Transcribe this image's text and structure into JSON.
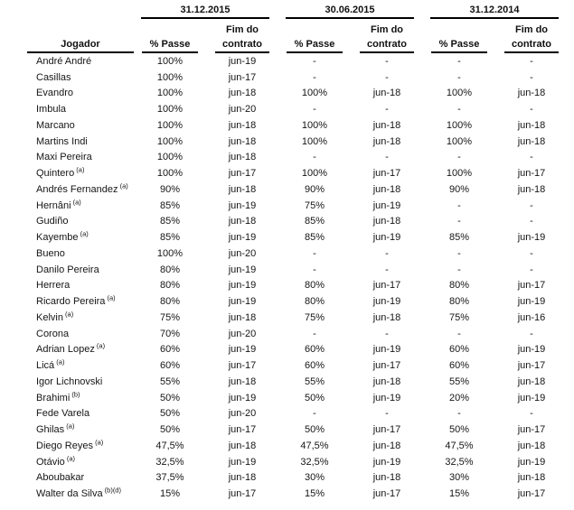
{
  "table": {
    "player_col_header": "Jogador",
    "groups": [
      {
        "date": "31.12.2015"
      },
      {
        "date": "30.06.2015"
      },
      {
        "date": "31.12.2014"
      }
    ],
    "sub_headers": {
      "passe": "% Passe",
      "fim_line1": "Fim do",
      "fim_line2": "contrato"
    },
    "rows": [
      {
        "player": "André André",
        "sup": "",
        "cells": [
          "100%",
          "jun-19",
          "-",
          "-",
          "-",
          "-"
        ]
      },
      {
        "player": "Casillas",
        "sup": "",
        "cells": [
          "100%",
          "jun-17",
          "-",
          "-",
          "-",
          "-"
        ]
      },
      {
        "player": "Evandro",
        "sup": "",
        "cells": [
          "100%",
          "jun-18",
          "100%",
          "jun-18",
          "100%",
          "jun-18"
        ]
      },
      {
        "player": "Imbula",
        "sup": "",
        "cells": [
          "100%",
          "jun-20",
          "-",
          "-",
          "-",
          "-"
        ]
      },
      {
        "player": "Marcano",
        "sup": "",
        "cells": [
          "100%",
          "jun-18",
          "100%",
          "jun-18",
          "100%",
          "jun-18"
        ]
      },
      {
        "player": "Martins Indi",
        "sup": "",
        "cells": [
          "100%",
          "jun-18",
          "100%",
          "jun-18",
          "100%",
          "jun-18"
        ]
      },
      {
        "player": "Maxi Pereira",
        "sup": "",
        "cells": [
          "100%",
          "jun-18",
          "-",
          "-",
          "-",
          "-"
        ]
      },
      {
        "player": "Quintero",
        "sup": "(a)",
        "cells": [
          "100%",
          "jun-17",
          "100%",
          "jun-17",
          "100%",
          "jun-17"
        ]
      },
      {
        "player": "Andrés Fernandez",
        "sup": "(a)",
        "cells": [
          "90%",
          "jun-18",
          "90%",
          "jun-18",
          "90%",
          "jun-18"
        ]
      },
      {
        "player": "Hernâni",
        "sup": "(a)",
        "cells": [
          "85%",
          "jun-19",
          "75%",
          "jun-19",
          "-",
          "-"
        ]
      },
      {
        "player": "Gudiño",
        "sup": "",
        "cells": [
          "85%",
          "jun-18",
          "85%",
          "jun-18",
          "-",
          "-"
        ]
      },
      {
        "player": "Kayembe",
        "sup": "(a)",
        "cells": [
          "85%",
          "jun-19",
          "85%",
          "jun-19",
          "85%",
          "jun-19"
        ]
      },
      {
        "player": "Bueno",
        "sup": "",
        "cells": [
          "100%",
          "jun-20",
          "-",
          "-",
          "-",
          "-"
        ]
      },
      {
        "player": "Danilo Pereira",
        "sup": "",
        "cells": [
          "80%",
          "jun-19",
          "-",
          "-",
          "-",
          "-"
        ]
      },
      {
        "player": "Herrera",
        "sup": "",
        "cells": [
          "80%",
          "jun-19",
          "80%",
          "jun-17",
          "80%",
          "jun-17"
        ]
      },
      {
        "player": "Ricardo Pereira",
        "sup": "(a)",
        "cells": [
          "80%",
          "jun-19",
          "80%",
          "jun-19",
          "80%",
          "jun-19"
        ]
      },
      {
        "player": "Kelvin",
        "sup": "(a)",
        "cells": [
          "75%",
          "jun-18",
          "75%",
          "jun-18",
          "75%",
          "jun-16"
        ]
      },
      {
        "player": "Corona",
        "sup": "",
        "cells": [
          "70%",
          "jun-20",
          "-",
          "-",
          "-",
          "-"
        ]
      },
      {
        "player": "Adrian Lopez",
        "sup": "(a)",
        "cells": [
          "60%",
          "jun-19",
          "60%",
          "jun-19",
          "60%",
          "jun-19"
        ]
      },
      {
        "player": "Licá",
        "sup": "(a)",
        "cells": [
          "60%",
          "jun-17",
          "60%",
          "jun-17",
          "60%",
          "jun-17"
        ]
      },
      {
        "player": "Igor Lichnovski",
        "sup": "",
        "cells": [
          "55%",
          "jun-18",
          "55%",
          "jun-18",
          "55%",
          "jun-18"
        ]
      },
      {
        "player": "Brahimi",
        "sup": "(b)",
        "cells": [
          "50%",
          "jun-19",
          "50%",
          "jun-19",
          "20%",
          "jun-19"
        ]
      },
      {
        "player": "Fede Varela",
        "sup": "",
        "cells": [
          "50%",
          "jun-20",
          "-",
          "-",
          "-",
          "-"
        ]
      },
      {
        "player": "Ghilas",
        "sup": "(a)",
        "cells": [
          "50%",
          "jun-17",
          "50%",
          "jun-17",
          "50%",
          "jun-17"
        ]
      },
      {
        "player": "Diego Reyes",
        "sup": "(a)",
        "cells": [
          "47,5%",
          "jun-18",
          "47,5%",
          "jun-18",
          "47,5%",
          "jun-18"
        ]
      },
      {
        "player": "Otávio",
        "sup": "(a)",
        "cells": [
          "32,5%",
          "jun-19",
          "32,5%",
          "jun-19",
          "32,5%",
          "jun-19"
        ]
      },
      {
        "player": "Aboubakar",
        "sup": "",
        "cells": [
          "37,5%",
          "jun-18",
          "30%",
          "jun-18",
          "30%",
          "jun-18"
        ]
      },
      {
        "player": "Walter da Silva",
        "sup": "(b)(d)",
        "cells": [
          "15%",
          "jun-17",
          "15%",
          "jun-17",
          "15%",
          "jun-17"
        ]
      }
    ]
  }
}
